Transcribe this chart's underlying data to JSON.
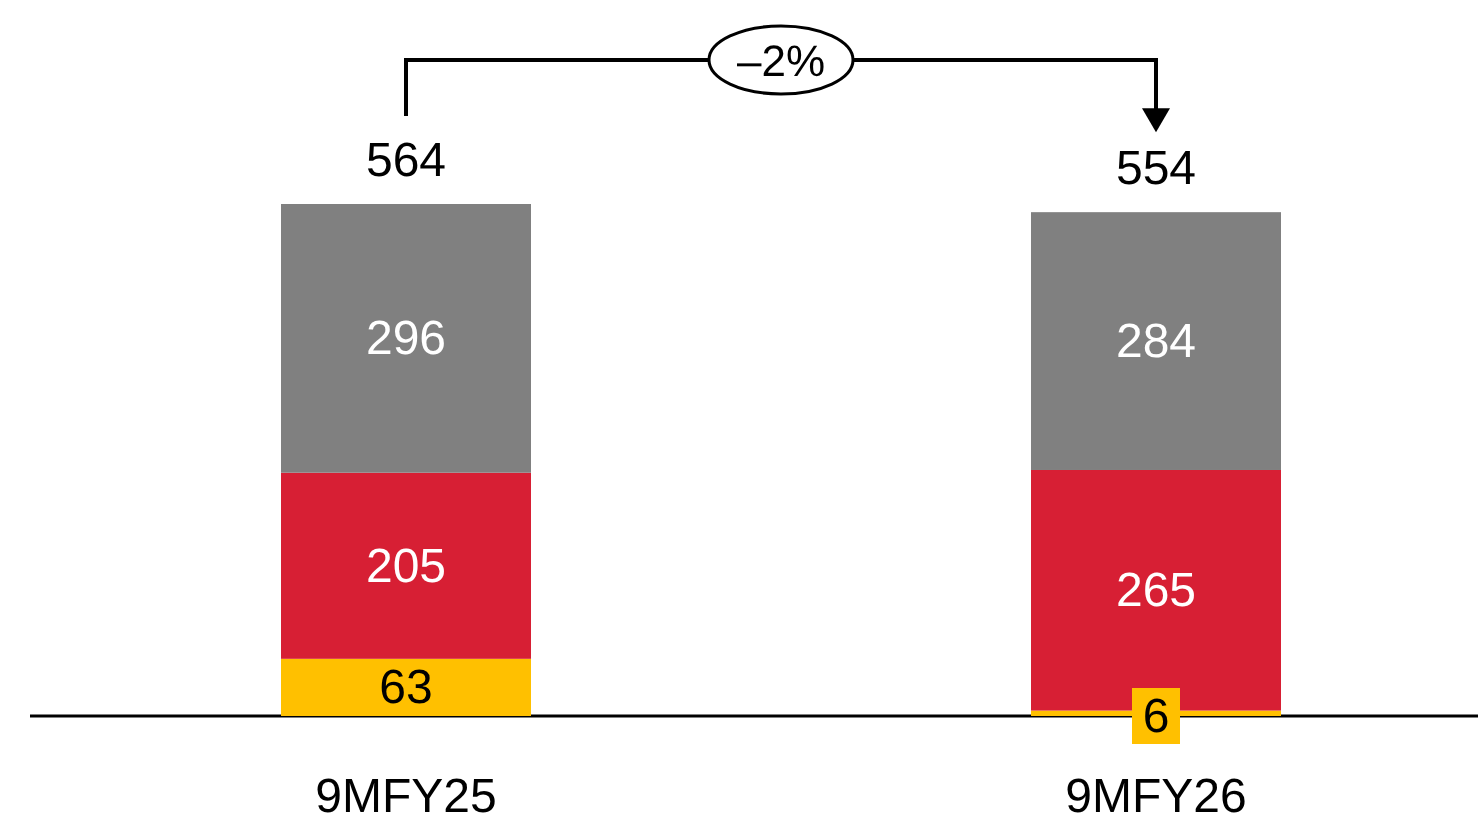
{
  "chart_data": {
    "type": "bar",
    "stacked": true,
    "categories": [
      "9MFY25",
      "9MFY26"
    ],
    "series": [
      {
        "color": "#ffc000",
        "values": [
          63,
          6
        ]
      },
      {
        "color": "#d71f34",
        "values": [
          205,
          265
        ]
      },
      {
        "color": "#808080",
        "values": [
          296,
          284
        ]
      }
    ],
    "data_labels": true,
    "totals": [
      "564",
      "554"
    ],
    "annotations": [
      "–2%"
    ]
  }
}
